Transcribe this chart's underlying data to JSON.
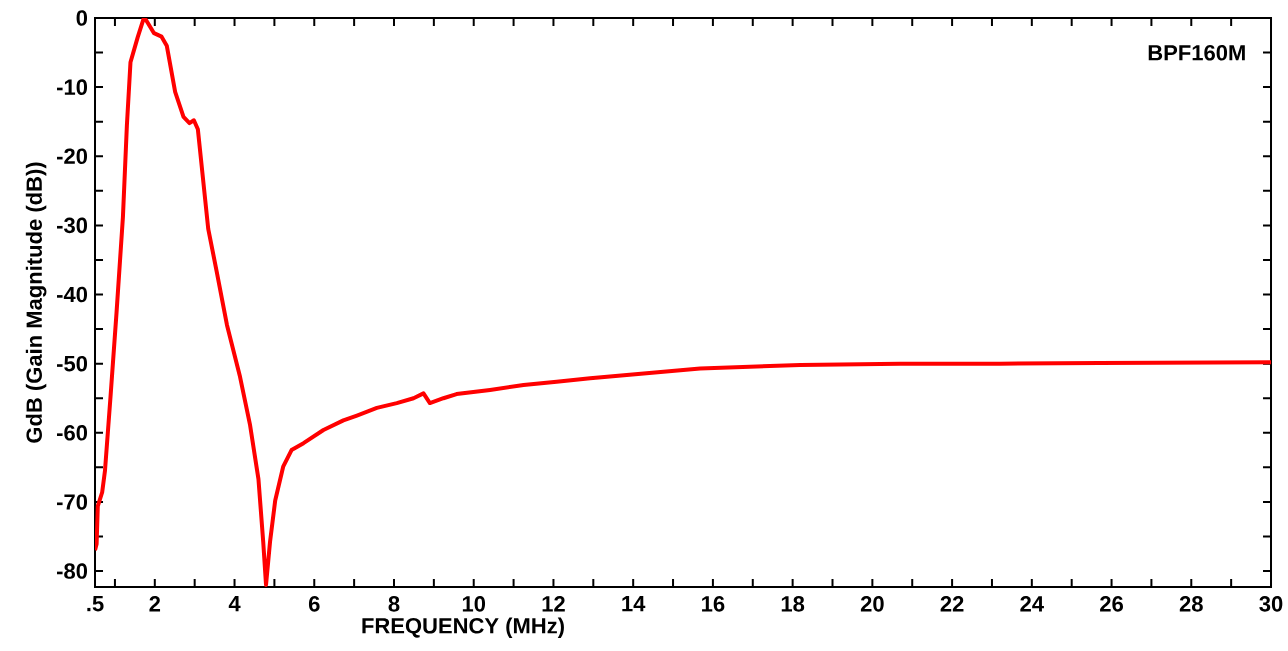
{
  "chart_data": {
    "type": "line",
    "xlabel": "FREQUENCY (MHz)",
    "ylabel": "GdB (Gain Magnitude (dB))",
    "annotations": [
      "BPF160M"
    ],
    "xlim": [
      0.5,
      30
    ],
    "ylim": [
      -82.3,
      0
    ],
    "xticks": [
      {
        "value": 0.5,
        "label": ".5"
      },
      {
        "value": 1,
        "label": null
      },
      2,
      {
        "value": 3,
        "label": null
      },
      4,
      {
        "value": 5,
        "label": null
      },
      6,
      {
        "value": 7,
        "label": null
      },
      8,
      {
        "value": 9,
        "label": null
      },
      10,
      {
        "value": 11,
        "label": null
      },
      12,
      {
        "value": 13,
        "label": null
      },
      14,
      {
        "value": 15,
        "label": null
      },
      16,
      {
        "value": 17,
        "label": null
      },
      18,
      {
        "value": 19,
        "label": null
      },
      20,
      {
        "value": 21,
        "label": null
      },
      22,
      {
        "value": 23,
        "label": null
      },
      24,
      {
        "value": 25,
        "label": null
      },
      26,
      {
        "value": 27,
        "label": null
      },
      28,
      {
        "value": 29,
        "label": null
      },
      30
    ],
    "yticks": [
      -80,
      {
        "value": -75,
        "label": null
      },
      -70,
      {
        "value": -65,
        "label": null
      },
      -60,
      {
        "value": -55,
        "label": null
      },
      -50,
      {
        "value": -45,
        "label": null
      },
      -40,
      {
        "value": -35,
        "label": null
      },
      -30,
      {
        "value": -25,
        "label": null
      },
      -20,
      {
        "value": -15,
        "label": null
      },
      -10,
      {
        "value": -5,
        "label": null
      },
      0
    ],
    "grid": false,
    "marker": "none",
    "line_style": "solid",
    "series": [
      {
        "color": "#ff0000",
        "x": [
          0.5,
          0.54,
          0.57,
          0.68,
          0.75,
          0.89,
          1.04,
          1.2,
          1.3,
          1.39,
          1.57,
          1.72,
          1.78,
          1.98,
          2.17,
          2.3,
          2.51,
          2.72,
          2.87,
          2.98,
          3.08,
          3.34,
          3.55,
          3.81,
          4.13,
          4.39,
          4.6,
          4.72,
          4.79,
          4.89,
          5.02,
          5.22,
          5.43,
          5.73,
          6.23,
          6.73,
          7.07,
          7.57,
          8.07,
          8.49,
          8.74,
          8.9,
          9.24,
          9.57,
          10.41,
          11.25,
          12.08,
          12.92,
          15.68,
          18.19,
          20.7,
          23.2,
          25.7,
          30
        ],
        "values": [
          -77,
          -76.1,
          -70.6,
          -68.6,
          -65.5,
          -54.7,
          -42.6,
          -28.8,
          -15.5,
          -6.4,
          -2.8,
          -0.1,
          -0.3,
          -2.2,
          -2.7,
          -4.0,
          -10.7,
          -14.3,
          -15.2,
          -14.8,
          -16.1,
          -30.5,
          -36.6,
          -44.4,
          -51.7,
          -58.9,
          -66.7,
          -75.8,
          -82,
          -75.8,
          -69.8,
          -64.9,
          -62.5,
          -61.5,
          -59.6,
          -58.2,
          -57.5,
          -56.4,
          -55.7,
          -55.0,
          -54.3,
          -55.7,
          -55.0,
          -54.4,
          -53.8,
          -53.1,
          -52.6,
          -52.1,
          -50.7,
          -50.2,
          -50.0,
          -50.0,
          -49.9,
          -49.8
        ]
      }
    ]
  }
}
